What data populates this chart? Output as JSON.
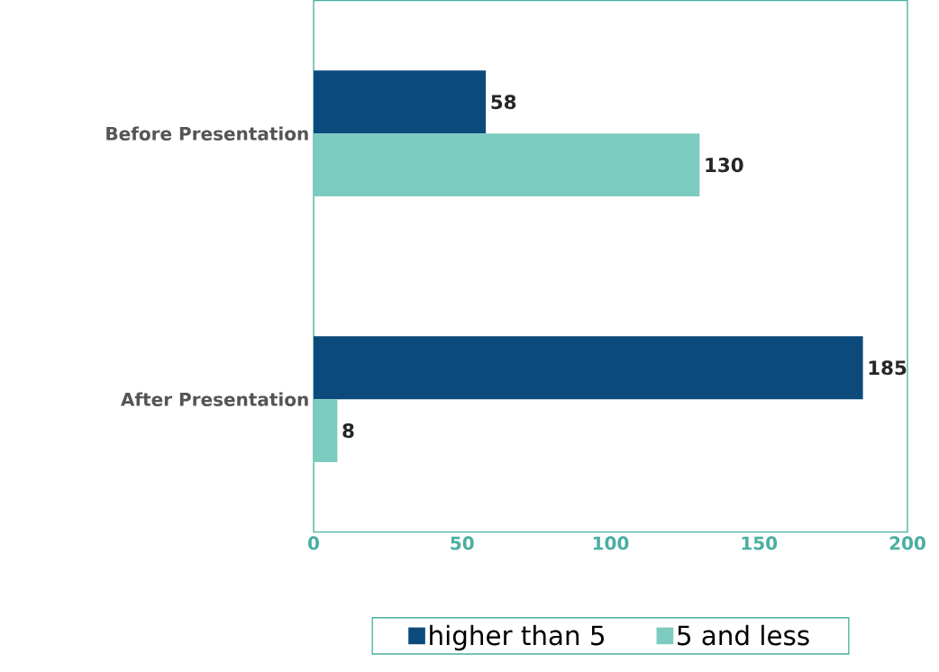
{
  "chart_data": {
    "type": "bar",
    "orientation": "horizontal",
    "categories": [
      "Before Presentation",
      "After Presentation"
    ],
    "series": [
      {
        "name": "higher than 5",
        "color": "#0d4a7c",
        "values": [
          58,
          185
        ]
      },
      {
        "name": "5 and less",
        "color": "#7ccbbf",
        "values": [
          130,
          8
        ]
      }
    ],
    "xlim": [
      0,
      200
    ],
    "xticks": [
      0,
      50,
      100,
      150,
      200
    ],
    "data_labels": true,
    "legend": "bottom",
    "grid": false
  }
}
